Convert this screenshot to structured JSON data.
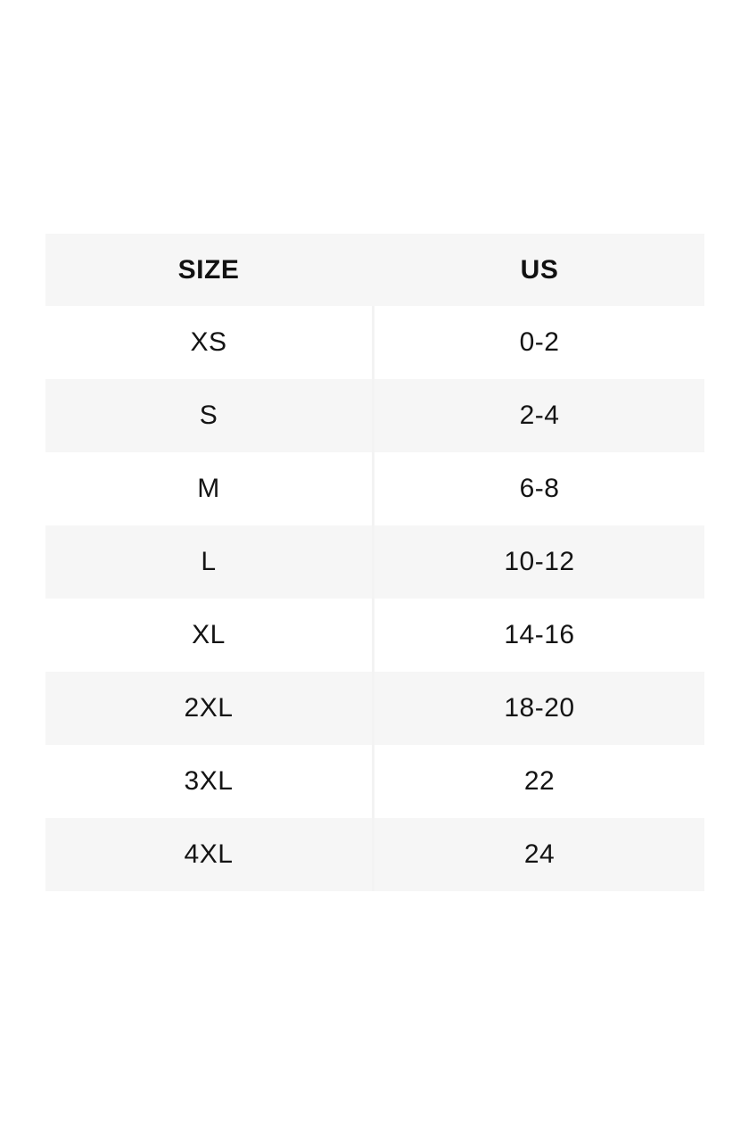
{
  "table": {
    "columns": [
      {
        "label": "SIZE"
      },
      {
        "label": "US"
      }
    ],
    "rows": [
      {
        "size": "XS",
        "us": "0-2"
      },
      {
        "size": "S",
        "us": "2-4"
      },
      {
        "size": "M",
        "us": "6-8"
      },
      {
        "size": "L",
        "us": "10-12"
      },
      {
        "size": "XL",
        "us": "14-16"
      },
      {
        "size": "2XL",
        "us": "18-20"
      },
      {
        "size": "3XL",
        "us": "22"
      },
      {
        "size": "4XL",
        "us": "24"
      }
    ],
    "colors": {
      "header_bg": "#f6f6f6",
      "row_bg": "#ffffff",
      "row_alt_bg": "#f6f6f6",
      "divider": "#f3f3f3",
      "text": "#141414",
      "page_bg": "#ffffff"
    }
  }
}
